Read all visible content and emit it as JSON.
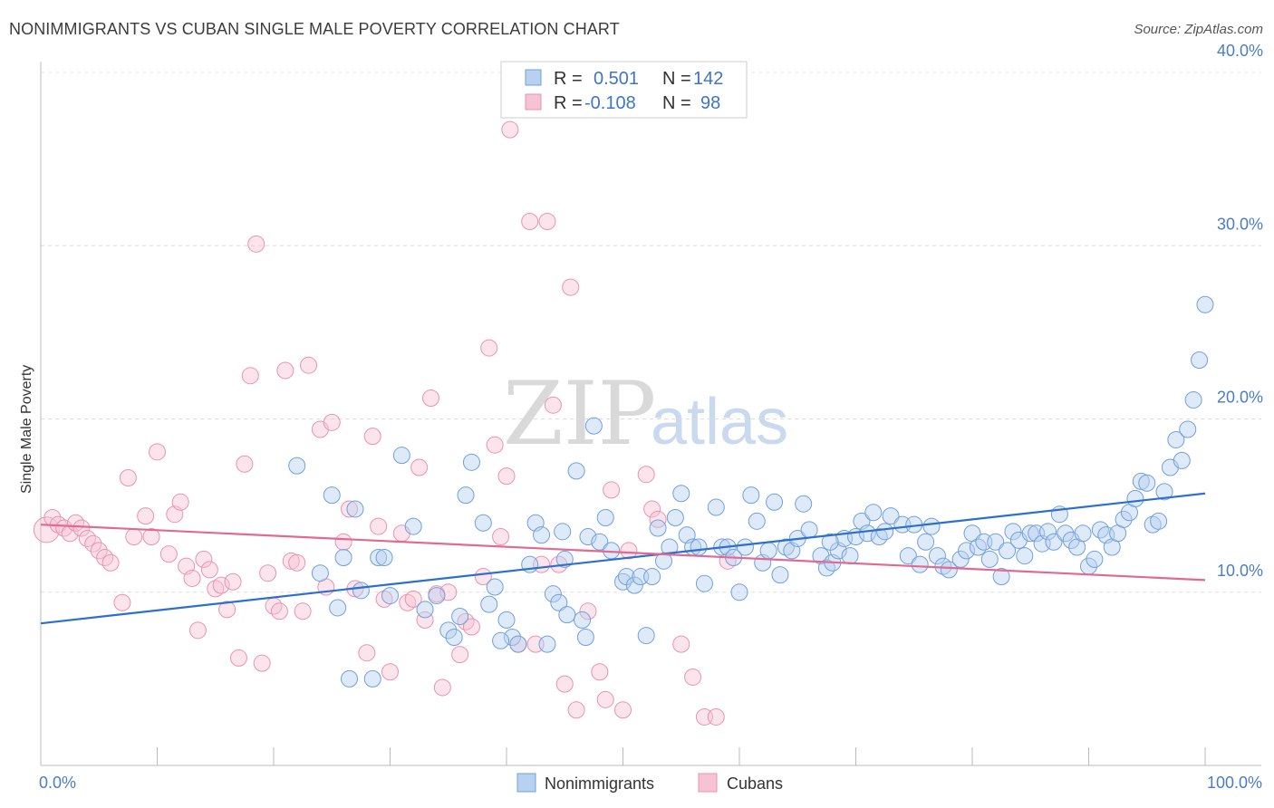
{
  "title": "NONIMMIGRANTS VS CUBAN SINGLE MALE POVERTY CORRELATION CHART",
  "source": "Source: ZipAtlas.com",
  "watermark": {
    "zip": "ZIP",
    "atlas": "atlas"
  },
  "colors": {
    "blue": "#6fa0dd",
    "blue_fill": "#b9d1f0",
    "blue_line": "#2d6fcc",
    "pink": "#ea93b0",
    "pink_fill": "#f6c3d4",
    "pink_line": "#e06a92",
    "grid": "#dddddd",
    "tick_text": "#4a7cc9"
  },
  "legend_box": {
    "rows": [
      {
        "r_label": "R =",
        "r_value": "0.501",
        "n_label": "N =",
        "n_value": "142",
        "series": "blue"
      },
      {
        "r_label": "R =",
        "r_value": "-0.108",
        "n_label": "N =",
        "n_value": "98",
        "series": "pink"
      }
    ]
  },
  "chart_data": {
    "type": "scatter",
    "title": "NONIMMIGRANTS VS CUBAN SINGLE MALE POVERTY CORRELATION CHART",
    "xlabel": "",
    "ylabel": "Single Male Poverty",
    "xlim": [
      0,
      100
    ],
    "ylim": [
      0,
      40
    ],
    "x_tick_labels": [
      "0.0%",
      "100.0%"
    ],
    "y_ticks": [
      10,
      20,
      30,
      40
    ],
    "y_tick_labels": [
      "10.0%",
      "20.0%",
      "30.0%",
      "40.0%"
    ],
    "grid": "horizontal dashed",
    "legend": "bottom-center",
    "series": [
      {
        "name": "Nonimmigrants",
        "color": "#6fa0dd",
        "trend": {
          "x0": 0,
          "y0": 8.2,
          "x1": 100,
          "y1": 15.7
        },
        "points": [
          [
            22,
            17.3
          ],
          [
            25,
            15.6
          ],
          [
            26,
            12.0
          ],
          [
            25.5,
            9.1
          ],
          [
            27,
            14.8
          ],
          [
            27.5,
            10.1
          ],
          [
            26.5,
            5.0
          ],
          [
            28.5,
            5.0
          ],
          [
            29,
            12.0
          ],
          [
            29.5,
            12.0
          ],
          [
            31,
            17.9
          ],
          [
            32,
            13.8
          ],
          [
            33,
            9.0
          ],
          [
            34,
            9.8
          ],
          [
            35,
            7.8
          ],
          [
            35.5,
            7.4
          ],
          [
            36,
            8.6
          ],
          [
            36.5,
            15.6
          ],
          [
            37,
            17.5
          ],
          [
            38,
            14.0
          ],
          [
            38.5,
            9.3
          ],
          [
            39,
            10.3
          ],
          [
            40,
            8.4
          ],
          [
            40.5,
            7.4
          ],
          [
            41,
            7.0
          ],
          [
            42,
            11.6
          ],
          [
            42.5,
            14.0
          ],
          [
            43,
            13.3
          ],
          [
            43.5,
            7.0
          ],
          [
            44,
            9.9
          ],
          [
            44.5,
            9.4
          ],
          [
            44.8,
            13.5
          ],
          [
            45,
            11.9
          ],
          [
            46,
            17.0
          ],
          [
            46.5,
            8.4
          ],
          [
            46.8,
            7.4
          ],
          [
            47,
            13.2
          ],
          [
            47.5,
            19.6
          ],
          [
            48,
            12.9
          ],
          [
            48.5,
            14.3
          ],
          [
            49,
            12.4
          ],
          [
            50,
            10.6
          ],
          [
            50.3,
            10.9
          ],
          [
            51,
            10.4
          ],
          [
            51.5,
            10.9
          ],
          [
            52,
            7.5
          ],
          [
            52.5,
            10.9
          ],
          [
            53,
            13.7
          ],
          [
            53.5,
            11.8
          ],
          [
            54,
            12.6
          ],
          [
            54.5,
            14.3
          ],
          [
            55,
            15.7
          ],
          [
            55.5,
            13.3
          ],
          [
            56,
            12.6
          ],
          [
            56.5,
            12.6
          ],
          [
            57,
            10.5
          ],
          [
            58,
            14.9
          ],
          [
            58.5,
            12.6
          ],
          [
            59,
            12.6
          ],
          [
            60,
            10.0
          ],
          [
            60.5,
            12.6
          ],
          [
            61,
            15.6
          ],
          [
            61.5,
            14.1
          ],
          [
            62,
            11.7
          ],
          [
            62.5,
            12.4
          ],
          [
            63,
            15.2
          ],
          [
            64,
            12.6
          ],
          [
            64.5,
            12.4
          ],
          [
            65,
            13.1
          ],
          [
            65.5,
            15.1
          ],
          [
            66,
            13.6
          ],
          [
            67,
            12.1
          ],
          [
            67.5,
            11.4
          ],
          [
            68,
            11.7
          ],
          [
            68.5,
            12.4
          ],
          [
            69,
            13.1
          ],
          [
            69.5,
            12.1
          ],
          [
            70,
            13.2
          ],
          [
            70.5,
            14.1
          ],
          [
            71,
            13.4
          ],
          [
            71.5,
            14.6
          ],
          [
            72,
            13.2
          ],
          [
            72.5,
            13.5
          ],
          [
            73,
            14.4
          ],
          [
            74,
            13.9
          ],
          [
            74.5,
            12.1
          ],
          [
            75,
            13.9
          ],
          [
            75.5,
            11.6
          ],
          [
            76,
            12.9
          ],
          [
            76.5,
            13.8
          ],
          [
            77,
            12.1
          ],
          [
            77.5,
            11.5
          ],
          [
            78,
            11.3
          ],
          [
            79,
            11.9
          ],
          [
            79.5,
            12.4
          ],
          [
            80,
            13.4
          ],
          [
            80.5,
            12.6
          ],
          [
            81,
            12.9
          ],
          [
            81.5,
            11.9
          ],
          [
            82,
            12.9
          ],
          [
            83,
            12.4
          ],
          [
            83.5,
            13.5
          ],
          [
            84,
            13.0
          ],
          [
            84.5,
            12.1
          ],
          [
            85,
            13.4
          ],
          [
            85.5,
            13.4
          ],
          [
            86,
            12.8
          ],
          [
            86.5,
            13.5
          ],
          [
            87,
            12.9
          ],
          [
            87.5,
            14.5
          ],
          [
            88,
            13.4
          ],
          [
            88.5,
            13.0
          ],
          [
            89,
            12.6
          ],
          [
            89.5,
            13.4
          ],
          [
            90,
            11.5
          ],
          [
            90.5,
            11.9
          ],
          [
            91,
            13.6
          ],
          [
            91.5,
            13.3
          ],
          [
            92,
            12.6
          ],
          [
            92.5,
            13.4
          ],
          [
            93,
            14.2
          ],
          [
            93.5,
            14.6
          ],
          [
            94,
            15.4
          ],
          [
            94.5,
            16.4
          ],
          [
            95,
            16.3
          ],
          [
            95.5,
            13.9
          ],
          [
            96,
            14.1
          ],
          [
            96.5,
            15.8
          ],
          [
            97,
            17.2
          ],
          [
            97.5,
            18.8
          ],
          [
            98,
            17.6
          ],
          [
            98.5,
            19.4
          ],
          [
            99,
            21.1
          ],
          [
            99.5,
            23.4
          ],
          [
            100,
            26.6
          ],
          [
            24,
            11.1
          ],
          [
            45.2,
            8.7
          ],
          [
            30,
            9.8
          ],
          [
            39.5,
            7.2
          ],
          [
            63.5,
            11.0
          ],
          [
            59.5,
            12.0
          ],
          [
            67.8,
            12.9
          ],
          [
            82.5,
            10.9
          ]
        ]
      },
      {
        "name": "Cubans",
        "color": "#ea93b0",
        "trend": {
          "x0": 0,
          "y0": 13.9,
          "x1": 100,
          "y1": 10.7
        },
        "points": [
          [
            0.5,
            13.6
          ],
          [
            1,
            14.3
          ],
          [
            1.5,
            13.9
          ],
          [
            2,
            13.7
          ],
          [
            2.5,
            13.4
          ],
          [
            3,
            14.0
          ],
          [
            3.5,
            13.7
          ],
          [
            4,
            13.1
          ],
          [
            4.5,
            12.8
          ],
          [
            5,
            12.4
          ],
          [
            5.5,
            12.0
          ],
          [
            6,
            11.7
          ],
          [
            7,
            9.4
          ],
          [
            7.5,
            16.6
          ],
          [
            8,
            13.2
          ],
          [
            9,
            14.4
          ],
          [
            9.5,
            13.2
          ],
          [
            10,
            18.1
          ],
          [
            11,
            12.2
          ],
          [
            11.5,
            14.5
          ],
          [
            12,
            15.2
          ],
          [
            12.5,
            11.5
          ],
          [
            13,
            10.8
          ],
          [
            13.5,
            7.8
          ],
          [
            14,
            11.9
          ],
          [
            14.5,
            11.3
          ],
          [
            15,
            10.2
          ],
          [
            15.5,
            10.4
          ],
          [
            16,
            9.0
          ],
          [
            16.5,
            10.6
          ],
          [
            17,
            6.2
          ],
          [
            17.5,
            17.4
          ],
          [
            18,
            22.5
          ],
          [
            18.5,
            30.1
          ],
          [
            19,
            5.9
          ],
          [
            19.5,
            11.1
          ],
          [
            20,
            9.2
          ],
          [
            20.5,
            8.9
          ],
          [
            21,
            22.8
          ],
          [
            21.5,
            11.8
          ],
          [
            22,
            11.7
          ],
          [
            22.5,
            8.9
          ],
          [
            23,
            23.1
          ],
          [
            24,
            19.4
          ],
          [
            24.5,
            10.3
          ],
          [
            25,
            19.8
          ],
          [
            26,
            12.9
          ],
          [
            26.5,
            14.8
          ],
          [
            27,
            10.2
          ],
          [
            28,
            6.5
          ],
          [
            28.5,
            19.0
          ],
          [
            29,
            13.8
          ],
          [
            29.5,
            9.6
          ],
          [
            30,
            5.4
          ],
          [
            31,
            13.4
          ],
          [
            31.5,
            9.4
          ],
          [
            32,
            9.6
          ],
          [
            32.5,
            17.2
          ],
          [
            33,
            8.4
          ],
          [
            33.5,
            21.2
          ],
          [
            34,
            9.9
          ],
          [
            34.5,
            4.5
          ],
          [
            35,
            10.0
          ],
          [
            36,
            6.4
          ],
          [
            36.5,
            8.3
          ],
          [
            37,
            8.0
          ],
          [
            38,
            10.9
          ],
          [
            38.5,
            24.1
          ],
          [
            39,
            18.5
          ],
          [
            39.5,
            13.2
          ],
          [
            40,
            16.7
          ],
          [
            40.3,
            36.7
          ],
          [
            41,
            7.0
          ],
          [
            42,
            31.4
          ],
          [
            42.5,
            7.0
          ],
          [
            43,
            11.6
          ],
          [
            43.5,
            31.4
          ],
          [
            44,
            20.8
          ],
          [
            44.5,
            11.6
          ],
          [
            45,
            4.7
          ],
          [
            45.5,
            27.6
          ],
          [
            46,
            3.2
          ],
          [
            47,
            8.9
          ],
          [
            48,
            5.4
          ],
          [
            48.5,
            3.8
          ],
          [
            49,
            15.9
          ],
          [
            50,
            3.2
          ],
          [
            50.5,
            12.4
          ],
          [
            52,
            16.8
          ],
          [
            52.5,
            14.8
          ],
          [
            53,
            14.2
          ],
          [
            55,
            7.0
          ],
          [
            56,
            5.1
          ],
          [
            57,
            2.8
          ],
          [
            58,
            2.8
          ],
          [
            59,
            11.8
          ]
        ]
      }
    ]
  },
  "legend_items": [
    {
      "label": "Nonimmigrants",
      "series": "blue"
    },
    {
      "label": "Cubans",
      "series": "pink"
    }
  ]
}
